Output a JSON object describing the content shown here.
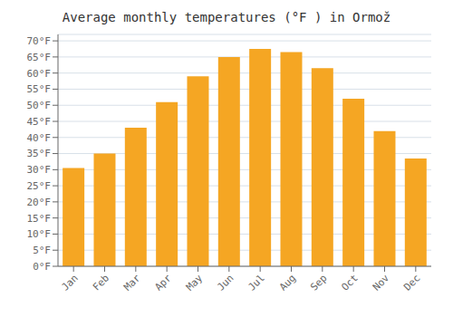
{
  "chart_data": {
    "type": "bar",
    "title": "Average monthly temperatures (°F ) in Ormož",
    "categories": [
      "Jan",
      "Feb",
      "Mar",
      "Apr",
      "May",
      "Jun",
      "Jul",
      "Aug",
      "Sep",
      "Oct",
      "Nov",
      "Dec"
    ],
    "values": [
      30.5,
      35,
      43,
      51,
      59,
      65,
      67.5,
      66.5,
      61.5,
      52,
      42,
      33.5
    ],
    "color": "#F5A623",
    "ylim": [
      0,
      72
    ],
    "yticks": [
      {
        "value": 0,
        "label": "0°F"
      },
      {
        "value": 5,
        "label": "5°F"
      },
      {
        "value": 10,
        "label": "10°F"
      },
      {
        "value": 15,
        "label": "15°F"
      },
      {
        "value": 20,
        "label": "20°F"
      },
      {
        "value": 25,
        "label": "25°F"
      },
      {
        "value": 30,
        "label": "30°F"
      },
      {
        "value": 35,
        "label": "35°F"
      },
      {
        "value": 40,
        "label": "40°F"
      },
      {
        "value": 45,
        "label": "45°F"
      },
      {
        "value": 50,
        "label": "50°F"
      },
      {
        "value": 55,
        "label": "55°F"
      },
      {
        "value": 60,
        "label": "60°F"
      },
      {
        "value": 65,
        "label": "65°F"
      },
      {
        "value": 70,
        "label": "70°F"
      }
    ],
    "grid": true
  }
}
